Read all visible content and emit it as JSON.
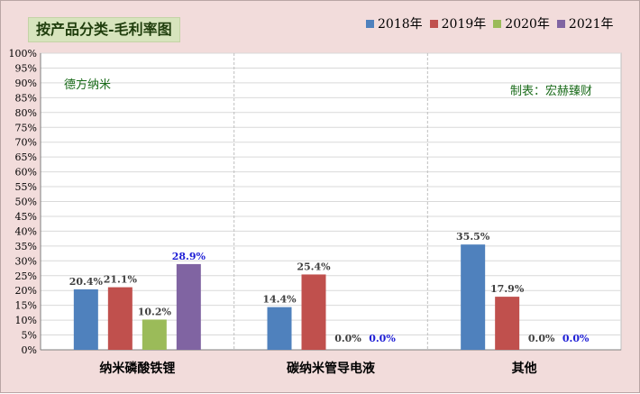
{
  "chart_data": {
    "type": "bar",
    "title": "按产品分类-毛利率图",
    "categories": [
      "纳米磷酸铁锂",
      "碳纳米管导电液",
      "其他"
    ],
    "series": [
      {
        "name": "2018年",
        "color": "#4f81bd",
        "values": [
          20.4,
          14.4,
          35.5
        ],
        "labels": [
          "20.4%",
          "14.4%",
          "35.5%"
        ],
        "label_color": "#404040"
      },
      {
        "name": "2019年",
        "color": "#c0504d",
        "values": [
          21.1,
          25.4,
          17.9
        ],
        "labels": [
          "21.1%",
          "25.4%",
          "17.9%"
        ],
        "label_color": "#404040"
      },
      {
        "name": "2020年",
        "color": "#9bbb59",
        "values": [
          10.2,
          0.0,
          0.0
        ],
        "labels": [
          "10.2%",
          "0.0%",
          "0.0%"
        ],
        "label_color": "#404040"
      },
      {
        "name": "2021年",
        "color": "#8064a2",
        "values": [
          28.9,
          0.0,
          0.0
        ],
        "labels": [
          "28.9%",
          "0.0%",
          "0.0%"
        ],
        "label_color": "#1f1fd6"
      }
    ],
    "ylim": [
      0,
      100
    ],
    "yticks": [
      "0%",
      "5%",
      "10%",
      "15%",
      "20%",
      "25%",
      "30%",
      "35%",
      "40%",
      "45%",
      "50%",
      "55%",
      "60%",
      "65%",
      "70%",
      "75%",
      "80%",
      "85%",
      "90%",
      "95%",
      "100%"
    ],
    "grid": true,
    "legend_position": "top-right",
    "annotations": {
      "company": "德方纳米",
      "credit": "制表：宏赫臻财"
    }
  }
}
